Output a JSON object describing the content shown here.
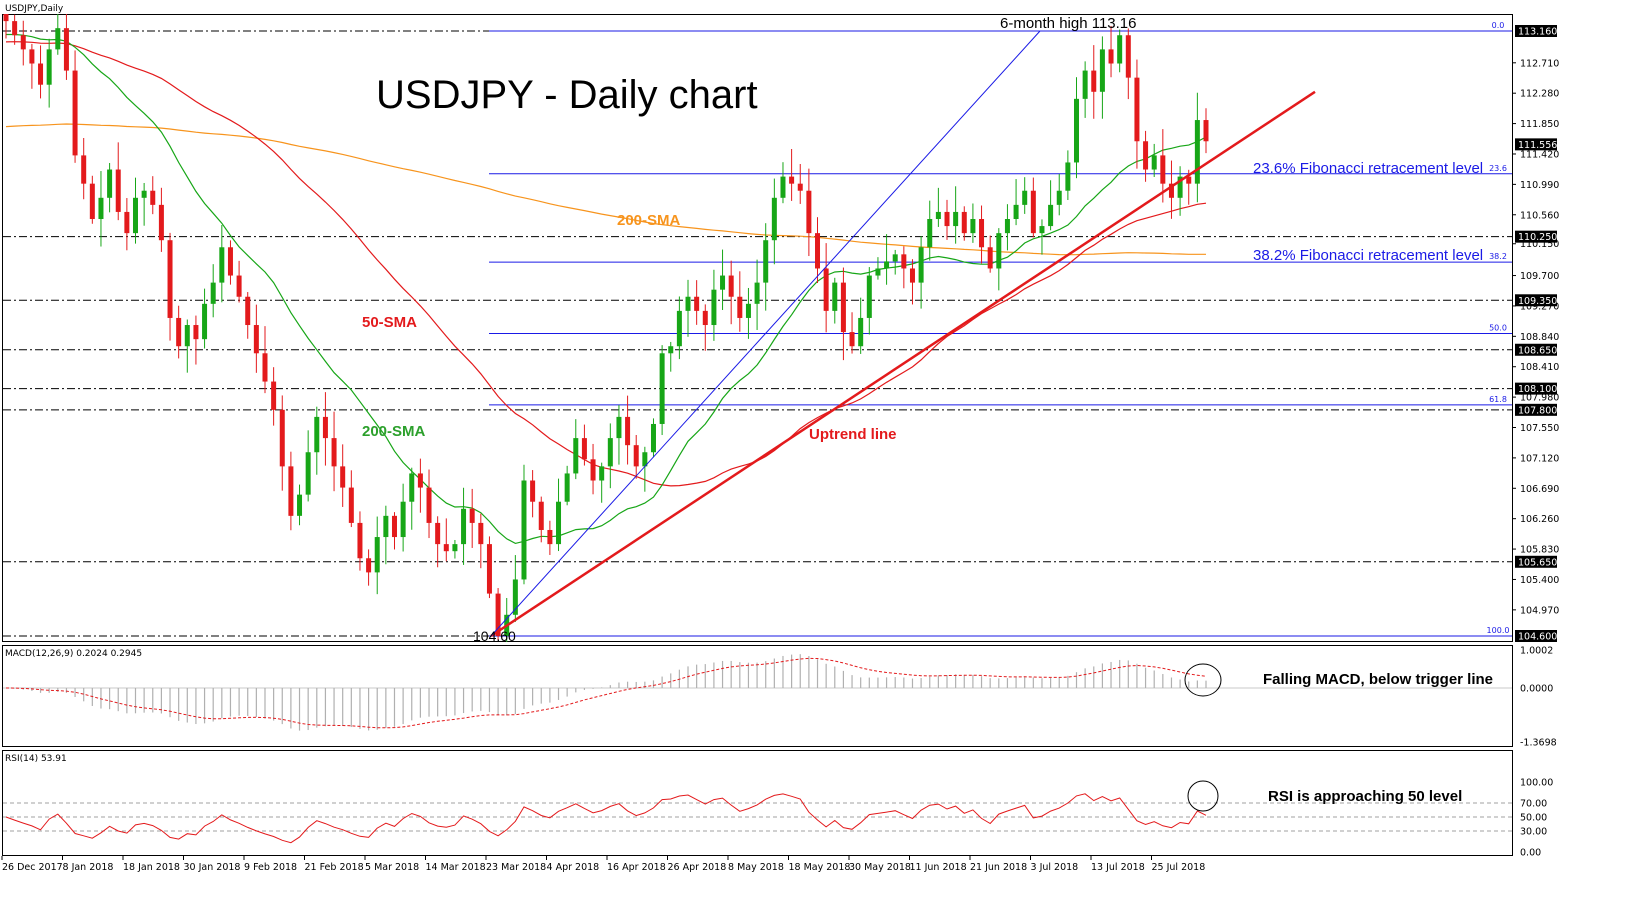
{
  "chart_data": {
    "type": "candlestick",
    "symbol_header": "USDJPY,Daily",
    "title": "USDJPY - Daily chart",
    "price_axis": {
      "range": [
        104.2,
        113.4
      ],
      "ticks": [
        "112.710",
        "112.280",
        "111.850",
        "111.420",
        "110.990",
        "110.560",
        "110.150",
        "109.700",
        "109.270",
        "108.840",
        "108.410",
        "107.980",
        "107.550",
        "107.120",
        "106.690",
        "106.260",
        "105.830",
        "105.400",
        "104.970"
      ]
    },
    "price_tags": [
      {
        "label": "113.160",
        "value": 113.16,
        "line": true
      },
      {
        "label": "111.556",
        "value": 111.556,
        "line": false
      },
      {
        "label": "110.250",
        "value": 110.25,
        "line": true
      },
      {
        "label": "109.350",
        "value": 109.35,
        "line": true
      },
      {
        "label": "108.650",
        "value": 108.65,
        "line": true
      },
      {
        "label": "108.100",
        "value": 108.1,
        "line": true
      },
      {
        "label": "107.800",
        "value": 107.8,
        "line": true
      },
      {
        "label": "105.650",
        "value": 105.65,
        "line": true
      },
      {
        "label": "104.600",
        "value": 104.6,
        "line": true
      }
    ],
    "fibonacci": [
      {
        "level": "0.0",
        "value": 113.16
      },
      {
        "level": "23.6",
        "value": 111.14
      },
      {
        "level": "38.2",
        "value": 109.89
      },
      {
        "level": "50.0",
        "value": 108.88
      },
      {
        "level": "61.8",
        "value": 107.87
      },
      {
        "level": "100.0",
        "value": 104.6
      }
    ],
    "x_labels": [
      "26 Dec 2017",
      "8 Jan 2018",
      "18 Jan 2018",
      "30 Jan 2018",
      "9 Feb 2018",
      "21 Feb 2018",
      "5 Mar 2018",
      "14 Mar 2018",
      "23 Mar 2018",
      "4 Apr 2018",
      "16 Apr 2018",
      "26 Apr 2018",
      "8 May 2018",
      "18 May 2018",
      "30 May 2018",
      "11 Jun 2018",
      "21 Jun 2018",
      "3 Jul 2018",
      "13 Jul 2018",
      "25 Jul 2018"
    ],
    "closes": [
      113.3,
      113.1,
      112.9,
      112.7,
      112.4,
      112.9,
      113.2,
      112.6,
      111.4,
      111.0,
      110.5,
      110.8,
      111.2,
      110.6,
      110.3,
      110.8,
      110.9,
      110.7,
      110.2,
      109.1,
      108.7,
      109.0,
      108.8,
      109.3,
      109.6,
      110.1,
      109.7,
      109.4,
      109.0,
      108.6,
      108.2,
      107.8,
      107.0,
      106.3,
      106.6,
      107.2,
      107.7,
      107.4,
      107.0,
      106.7,
      106.2,
      105.7,
      105.5,
      106.0,
      106.3,
      106.0,
      106.5,
      106.9,
      106.7,
      106.2,
      105.9,
      105.8,
      105.9,
      106.4,
      106.2,
      105.9,
      105.2,
      104.6,
      104.9,
      105.4,
      106.8,
      106.5,
      106.1,
      105.9,
      106.5,
      106.9,
      107.4,
      107.1,
      106.8,
      107.0,
      107.4,
      107.7,
      107.3,
      107.0,
      107.2,
      107.6,
      108.6,
      108.7,
      109.2,
      109.4,
      109.2,
      109.0,
      109.5,
      109.7,
      109.4,
      109.1,
      109.3,
      109.6,
      110.2,
      110.8,
      111.1,
      111.0,
      110.9,
      110.3,
      109.8,
      109.2,
      109.6,
      108.9,
      108.7,
      109.1,
      109.7,
      109.8,
      109.9,
      110.0,
      109.8,
      109.6,
      110.1,
      110.5,
      110.6,
      110.4,
      110.6,
      110.3,
      110.5,
      110.1,
      109.8,
      110.3,
      110.5,
      110.7,
      110.9,
      110.3,
      110.4,
      110.7,
      110.9,
      111.3,
      112.2,
      112.6,
      112.3,
      112.9,
      112.7,
      113.1,
      112.5,
      111.6,
      111.2,
      111.4,
      111.0,
      110.8,
      111.1,
      111.0,
      111.9,
      111.6
    ],
    "annotations": [
      "6-month high 113.16",
      "104.60",
      "200-SMA",
      "50-SMA",
      "200-SMA",
      "Uptrend line",
      "23.6% Fibonacci retracement level",
      "38.2% Fibonacci retracement level"
    ],
    "macd": {
      "header": "MACD(12,26,9) 0.2024 0.2945",
      "ticks": [
        "1.0002",
        "0.0000",
        "-1.3698"
      ],
      "annotation": "Falling MACD, below trigger line"
    },
    "rsi": {
      "header": "RSI(14) 53.91",
      "ticks": [
        "100.00",
        "70.00",
        "50.00",
        "30.00",
        "0.00"
      ],
      "annotation": "RSI is approaching 50 level"
    }
  }
}
